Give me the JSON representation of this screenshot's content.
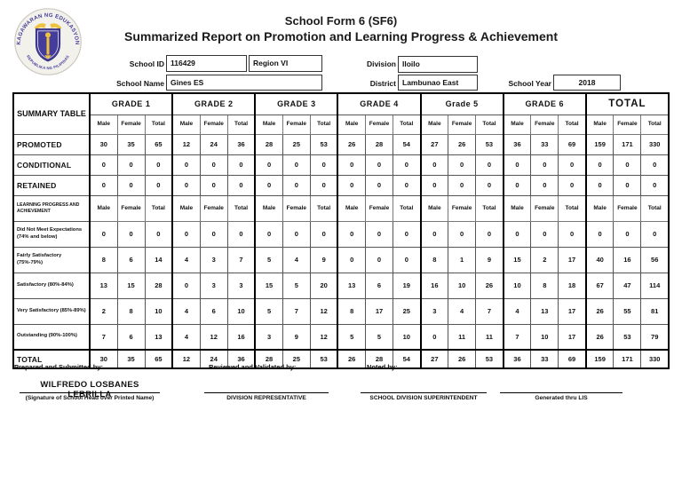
{
  "logo": {
    "ring_top": "KAGAWARAN NG EDUKASYON",
    "ring_bottom": "REPUBLIKA NG PILIPINAS",
    "colors": {
      "purple": "#453f99",
      "gold": "#edc23f"
    }
  },
  "header": {
    "form_title": "School Form 6 (SF6)",
    "form_subtitle": "Summarized Report on Promotion and Learning Progress & Achievement",
    "fields": {
      "school_id_label": "School ID",
      "school_id": "116429",
      "region": "Region VI",
      "division_label": "Division",
      "division": "Iloilo",
      "school_name_label": "School Name",
      "school_name": "Gines ES",
      "district_label": "District",
      "district": "Lambunao East",
      "school_year_label": "School Year",
      "school_year": "2018"
    }
  },
  "table": {
    "corner_label": "SUMMARY TABLE",
    "group_headers": [
      "GRADE 1",
      "GRADE 2",
      "GRADE 3",
      "GRADE 4",
      "Grade 5",
      "GRADE 6",
      "TOTAL"
    ],
    "sub_headers": [
      "Male",
      "Female",
      "Total"
    ],
    "promotion_rows": [
      {
        "label": "PROMOTED",
        "values": [
          30,
          35,
          65,
          12,
          24,
          36,
          28,
          25,
          53,
          26,
          28,
          54,
          27,
          26,
          53,
          36,
          33,
          69,
          159,
          171,
          330
        ]
      },
      {
        "label": "CONDITIONAL",
        "values": [
          0,
          0,
          0,
          0,
          0,
          0,
          0,
          0,
          0,
          0,
          0,
          0,
          0,
          0,
          0,
          0,
          0,
          0,
          0,
          0,
          0
        ]
      },
      {
        "label": "RETAINED",
        "values": [
          0,
          0,
          0,
          0,
          0,
          0,
          0,
          0,
          0,
          0,
          0,
          0,
          0,
          0,
          0,
          0,
          0,
          0,
          0,
          0,
          0
        ]
      }
    ],
    "progress_header_label": "LEARNING PROGRESS AND ACHIEVEMENT",
    "progress_rows": [
      {
        "label": "Did Not Meet Expectations (74% and below)",
        "values": [
          0,
          0,
          0,
          0,
          0,
          0,
          0,
          0,
          0,
          0,
          0,
          0,
          0,
          0,
          0,
          0,
          0,
          0,
          0,
          0,
          0
        ]
      },
      {
        "label": "Fairly Satisfactory (75%-79%)",
        "values": [
          8,
          6,
          14,
          4,
          3,
          7,
          5,
          4,
          9,
          0,
          0,
          0,
          8,
          1,
          9,
          15,
          2,
          17,
          40,
          16,
          56
        ]
      },
      {
        "label": "Satisfactory (80%-84%)",
        "values": [
          13,
          15,
          28,
          0,
          3,
          3,
          15,
          5,
          20,
          13,
          6,
          19,
          16,
          10,
          26,
          10,
          8,
          18,
          67,
          47,
          114
        ]
      },
      {
        "label": "Very Satisfactory (85%-89%)",
        "values": [
          2,
          8,
          10,
          4,
          6,
          10,
          5,
          7,
          12,
          8,
          17,
          25,
          3,
          4,
          7,
          4,
          13,
          17,
          26,
          55,
          81
        ]
      },
      {
        "label": "Outstanding (90%-100%)",
        "values": [
          7,
          6,
          13,
          4,
          12,
          16,
          3,
          9,
          12,
          5,
          5,
          10,
          0,
          11,
          11,
          7,
          10,
          17,
          26,
          53,
          79
        ]
      }
    ],
    "total_row": {
      "label": "TOTAL",
      "values": [
        30,
        35,
        65,
        12,
        24,
        36,
        28,
        25,
        53,
        26,
        28,
        54,
        27,
        26,
        53,
        36,
        33,
        69,
        159,
        171,
        330
      ]
    }
  },
  "footer": {
    "prepared_label": "Prepared and Submitted by:",
    "reviewed_label": "Reviewed and Validated by:",
    "noted_label": "Noted by:",
    "prepared_name": "WILFREDO LOSBANES LEBRILLA",
    "signature_captions": [
      "(Signature of School Head over Printed Name)",
      "DIVISION REPRESENTATIVE",
      "SCHOOL DIVISION SUPERINTENDENT",
      "Generated thru LIS"
    ]
  }
}
